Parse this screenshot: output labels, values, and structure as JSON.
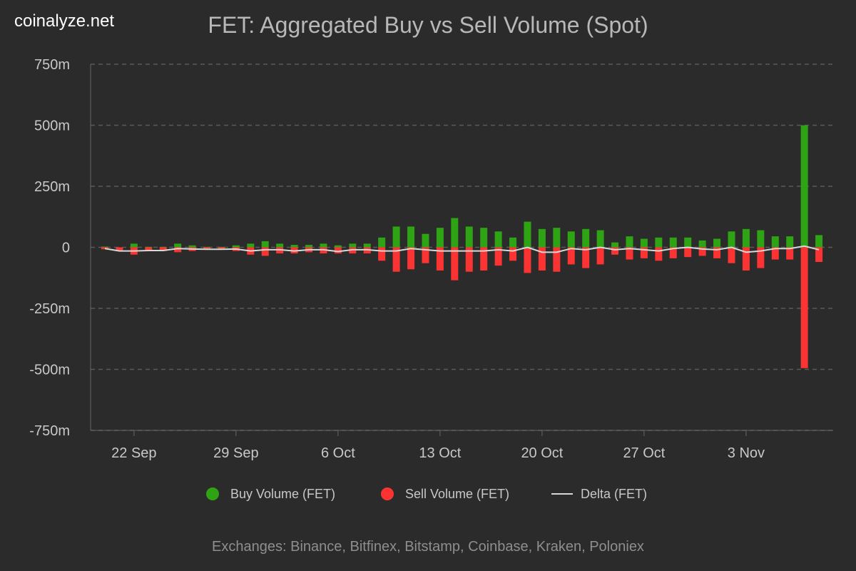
{
  "logo": "coinalyze.net",
  "footer": "Exchanges: Binance, Bitfinex, Bitstamp, Coinbase, Kraken, Poloniex",
  "chart_data": {
    "type": "bar",
    "title": "FET: Aggregated Buy vs Sell Volume (Spot)",
    "ylim": [
      -750,
      750
    ],
    "yunit": "m",
    "yticks": [
      "750m",
      "500m",
      "250m",
      "0",
      "-250m",
      "-500m",
      "-750m"
    ],
    "ytick_values": [
      750,
      500,
      250,
      0,
      -250,
      -500,
      -750
    ],
    "xticks": [
      "22 Sep",
      "29 Sep",
      "6 Oct",
      "13 Oct",
      "20 Oct",
      "27 Oct",
      "3 Nov"
    ],
    "xtick_index": [
      2,
      9,
      16,
      23,
      30,
      37,
      44
    ],
    "grid": "horizontal dashed",
    "legend_position": "bottom",
    "colors": {
      "buy": "#2ea314",
      "sell": "#fb3333",
      "delta": "#d8d8d8"
    },
    "categories": [
      "20 Sep",
      "21 Sep",
      "22 Sep",
      "23 Sep",
      "24 Sep",
      "25 Sep",
      "26 Sep",
      "27 Sep",
      "28 Sep",
      "29 Sep",
      "30 Sep",
      "1 Oct",
      "2 Oct",
      "3 Oct",
      "4 Oct",
      "5 Oct",
      "6 Oct",
      "7 Oct",
      "8 Oct",
      "9 Oct",
      "10 Oct",
      "11 Oct",
      "12 Oct",
      "13 Oct",
      "14 Oct",
      "15 Oct",
      "16 Oct",
      "17 Oct",
      "18 Oct",
      "19 Oct",
      "20 Oct",
      "21 Oct",
      "22 Oct",
      "23 Oct",
      "24 Oct",
      "25 Oct",
      "26 Oct",
      "27 Oct",
      "28 Oct",
      "29 Oct",
      "30 Oct",
      "31 Oct",
      "1 Nov",
      "2 Nov",
      "3 Nov",
      "4 Nov",
      "5 Nov",
      "6 Nov",
      "7 Nov",
      "8 Nov"
    ],
    "series": [
      {
        "name": "Buy Volume (FET)",
        "values": [
          3,
          0,
          15,
          2,
          2,
          15,
          8,
          2,
          2,
          8,
          15,
          25,
          15,
          10,
          10,
          15,
          8,
          15,
          15,
          40,
          85,
          85,
          55,
          80,
          120,
          85,
          80,
          65,
          40,
          105,
          75,
          80,
          65,
          75,
          70,
          20,
          45,
          35,
          40,
          40,
          40,
          28,
          35,
          65,
          75,
          70,
          45,
          45,
          500,
          50
        ]
      },
      {
        "name": "Sell Volume (FET)",
        "values": [
          -8,
          -15,
          -30,
          -15,
          -15,
          -20,
          -15,
          -10,
          -10,
          -15,
          -30,
          -35,
          -25,
          -25,
          -20,
          -25,
          -25,
          -25,
          -25,
          -55,
          -100,
          -90,
          -65,
          -95,
          -135,
          -100,
          -95,
          -75,
          -55,
          -105,
          -95,
          -100,
          -70,
          -85,
          -70,
          -30,
          -50,
          -45,
          -55,
          -45,
          -40,
          -35,
          -45,
          -65,
          -95,
          -85,
          -50,
          -50,
          -495,
          -60
        ]
      },
      {
        "name": "Delta (FET)",
        "values": [
          -5,
          -15,
          -15,
          -13,
          -13,
          -5,
          -7,
          -8,
          -8,
          -7,
          -15,
          -10,
          -10,
          -15,
          -10,
          -10,
          -17,
          -10,
          -10,
          -15,
          -15,
          -5,
          -10,
          -15,
          -15,
          -15,
          -15,
          -10,
          -15,
          0,
          -20,
          -20,
          -5,
          -10,
          0,
          -10,
          -5,
          -10,
          -15,
          -5,
          0,
          -7,
          -10,
          0,
          -20,
          -15,
          -5,
          -5,
          5,
          -10
        ]
      }
    ]
  }
}
